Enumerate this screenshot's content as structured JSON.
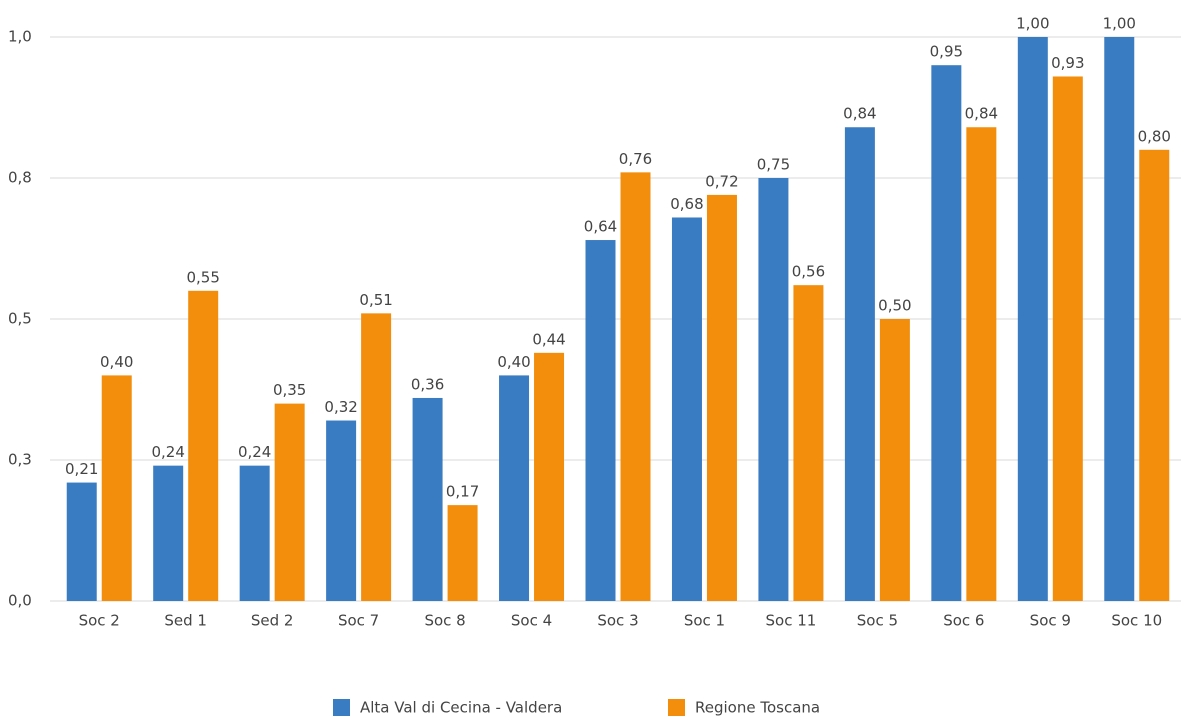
{
  "chart_data": {
    "type": "bar",
    "categories": [
      "Soc 2",
      "Sed 1",
      "Sed 2",
      "Soc 7",
      "Soc 8",
      "Soc 4",
      "Soc 3",
      "Soc 1",
      "Soc 11",
      "Soc 5",
      "Soc 6",
      "Soc 9",
      "Soc 10"
    ],
    "series": [
      {
        "name": "Alta Val di Cecina - Valdera",
        "color": "#3a7cc1",
        "values": [
          0.21,
          0.24,
          0.24,
          0.32,
          0.36,
          0.4,
          0.64,
          0.68,
          0.75,
          0.84,
          0.95,
          1.0,
          1.0
        ],
        "value_labels": [
          "0,21",
          "0,24",
          "0,24",
          "0,32",
          "0,36",
          "0,40",
          "0,64",
          "0,68",
          "0,75",
          "0,84",
          "0,95",
          "1,00",
          "1,00"
        ]
      },
      {
        "name": "Regione Toscana",
        "color": "#f28e0c",
        "values": [
          0.4,
          0.55,
          0.35,
          0.51,
          0.17,
          0.44,
          0.76,
          0.72,
          0.56,
          0.5,
          0.84,
          0.93,
          0.8
        ],
        "value_labels": [
          "0,40",
          "0,55",
          "0,35",
          "0,51",
          "0,17",
          "0,44",
          "0,76",
          "0,72",
          "0,56",
          "0,50",
          "0,84",
          "0,93",
          "0,80"
        ]
      }
    ],
    "ylim": [
      0,
      1
    ],
    "yticks": [
      {
        "value": 0,
        "label": "0,0"
      },
      {
        "value": 0.25,
        "label": "0,3"
      },
      {
        "value": 0.5,
        "label": "0,5"
      },
      {
        "value": 0.75,
        "label": "0,8"
      },
      {
        "value": 1,
        "label": "1,0"
      }
    ],
    "grid": true,
    "legend": "bottom"
  }
}
